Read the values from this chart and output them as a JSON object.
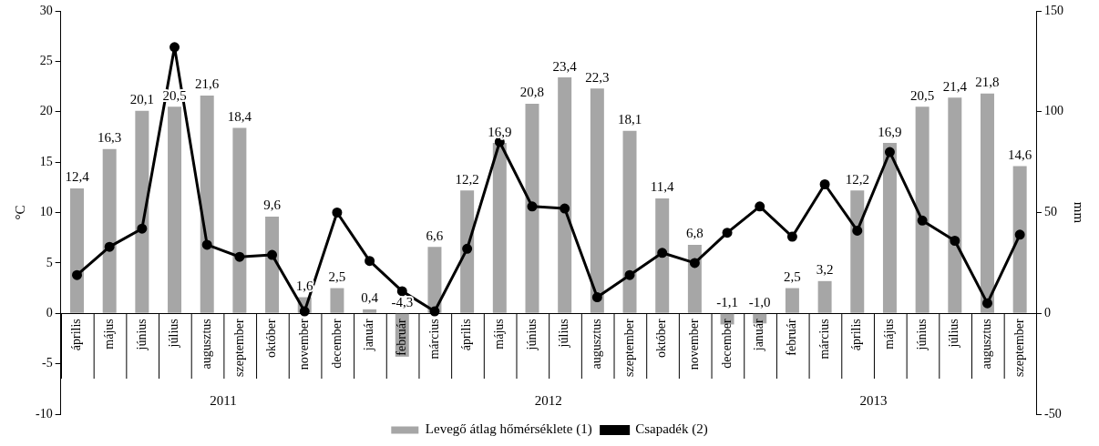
{
  "chart_data": {
    "type": "bar",
    "categories": [
      "április",
      "május",
      "június",
      "július",
      "augusztus",
      "szeptember",
      "október",
      "november",
      "december",
      "január",
      "február",
      "március",
      "április",
      "május",
      "június",
      "július",
      "augusztus",
      "szeptember",
      "október",
      "november",
      "december",
      "január",
      "február",
      "március",
      "április",
      "május",
      "június",
      "július",
      "augusztus",
      "szeptember"
    ],
    "series": [
      {
        "name": "Levegő átlag hőmérséklete (1)",
        "color": "#a6a6a6",
        "values": [
          12.4,
          16.3,
          20.1,
          20.5,
          21.6,
          18.4,
          9.6,
          1.6,
          2.5,
          0.4,
          -4.3,
          6.6,
          12.2,
          16.9,
          20.8,
          23.4,
          22.3,
          18.1,
          11.4,
          6.8,
          -1.1,
          -1.0,
          2.5,
          3.2,
          12.2,
          16.9,
          20.5,
          21.4,
          21.8,
          14.6
        ]
      },
      {
        "name": "Csapadék (2)",
        "type": "line",
        "axis": "y2",
        "color": "#000000",
        "values": [
          19,
          33,
          42,
          132,
          34,
          28,
          29,
          1,
          50,
          26,
          11,
          1,
          32,
          85,
          53,
          52,
          8,
          19,
          30,
          25,
          40,
          53,
          38,
          64,
          41,
          80,
          46,
          36,
          5,
          39
        ]
      }
    ],
    "value_labels": [
      "12,4",
      "16,3",
      "20,1",
      "20,5",
      "21,6",
      "18,4",
      "9,6",
      "1,6",
      "2,5",
      "0,4",
      "-4,3",
      "6,6",
      "12,2",
      "16,9",
      "20,8",
      "23,4",
      "22,3",
      "18,1",
      "11,4",
      "6,8",
      "-1,1",
      "-1,0",
      "2,5",
      "3,2",
      "12,2",
      "16,9",
      "20,5",
      "21,4",
      "21,8",
      "14,6"
    ],
    "ylabel": "°C",
    "y2label": "mm",
    "ylim": [
      -10,
      30
    ],
    "yticks": [
      -10,
      -5,
      0,
      5,
      10,
      15,
      20,
      25,
      30
    ],
    "y2lim": [
      -50,
      150
    ],
    "y2ticks": [
      -50,
      0,
      50,
      100,
      150
    ],
    "annotations": [
      "2011",
      "2012",
      "2013"
    ],
    "legend": "bottom",
    "marker": "circle",
    "line_style": "solid",
    "grid": false
  }
}
